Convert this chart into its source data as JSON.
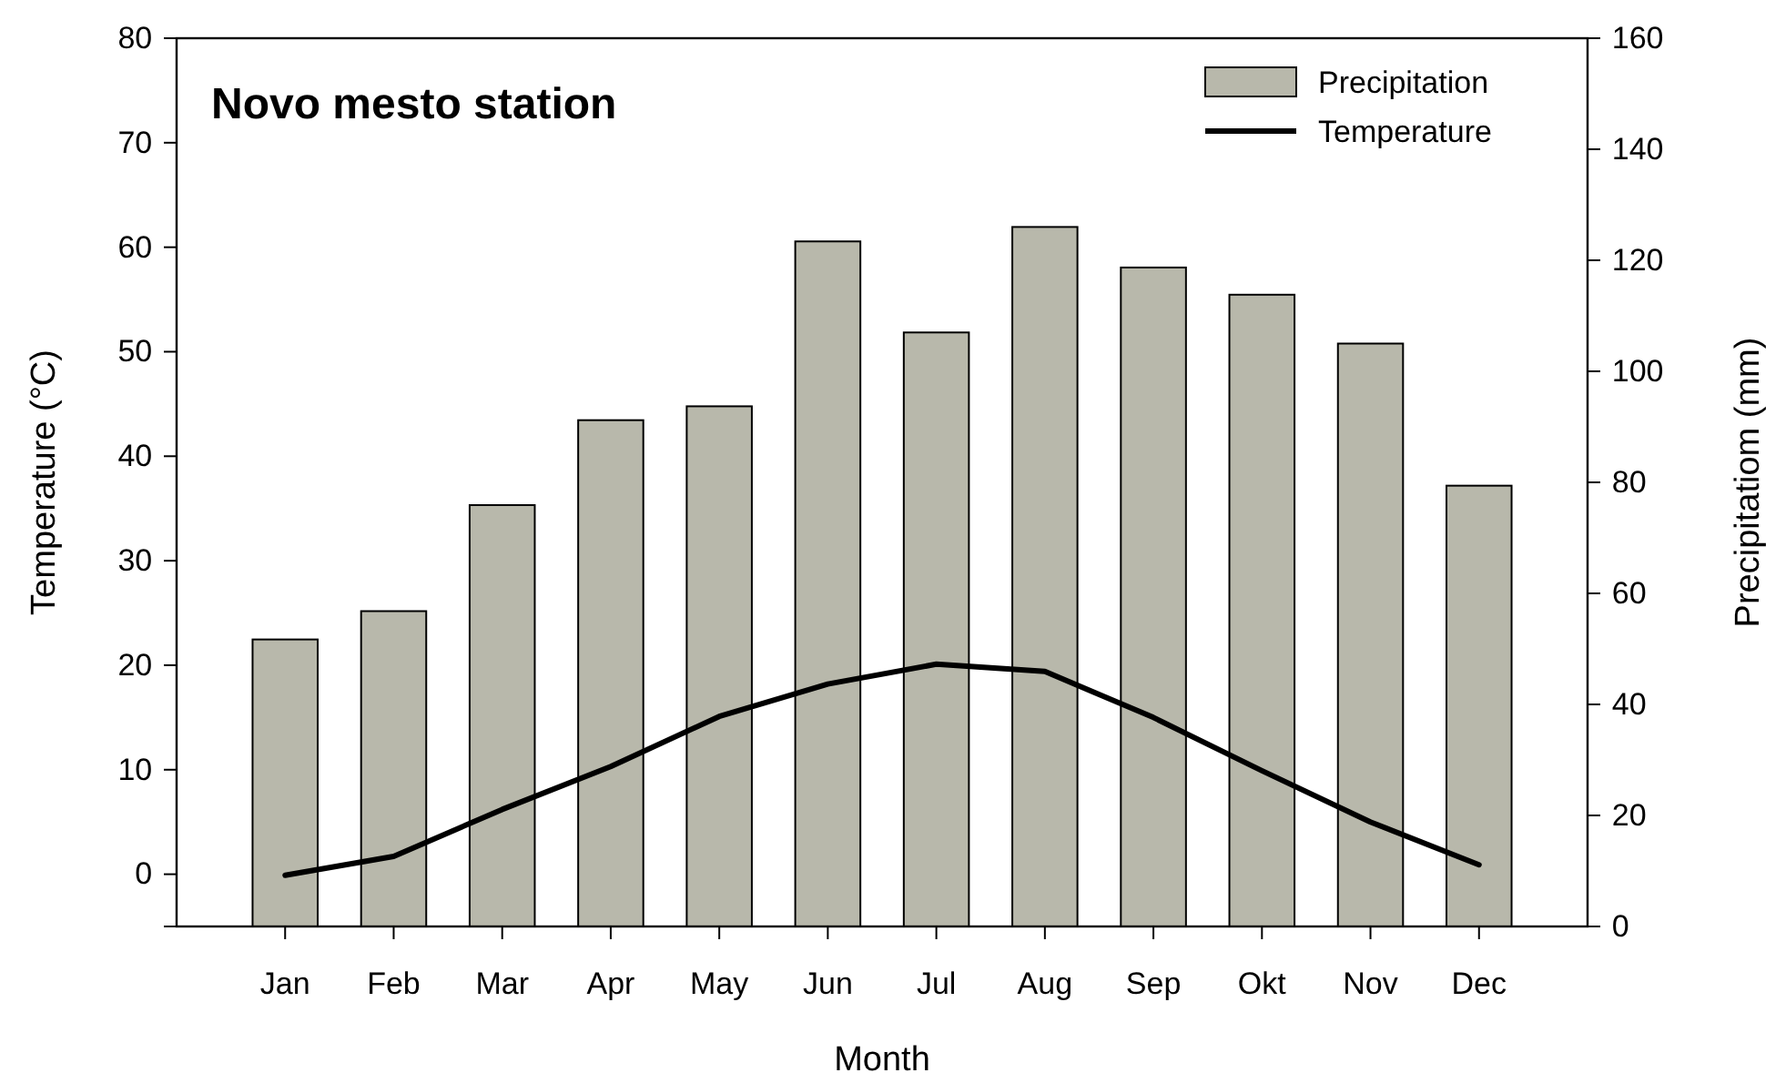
{
  "chart_data": {
    "type": "bar",
    "title": "Novo mesto station",
    "xlabel": "Month",
    "ylabel": "Temperature (°C)",
    "y2label": "Precipitatiom (mm)",
    "categories": [
      "Jan",
      "Feb",
      "Mar",
      "Apr",
      "May",
      "Jun",
      "Jul",
      "Aug",
      "Sep",
      "Okt",
      "Nov",
      "Dec"
    ],
    "series": [
      {
        "name": "Precipitation",
        "type": "bar",
        "axis": "y2",
        "color": "#b8b8ab",
        "values": [
          51.7,
          56.8,
          75.9,
          91.2,
          93.7,
          123.4,
          107,
          126,
          118.7,
          113.8,
          105,
          79.4
        ]
      },
      {
        "name": "Temperature",
        "type": "line",
        "color": "#000000",
        "values": [
          -0.1,
          1.7,
          6.2,
          10.3,
          15.1,
          18.2,
          20.1,
          19.4,
          15.0,
          9.9,
          5.0,
          0.9
        ]
      }
    ],
    "ylim": [
      -5,
      80
    ],
    "yticks": [
      0,
      10,
      20,
      30,
      40,
      50,
      60,
      70,
      80
    ],
    "y2lim": [
      0,
      160
    ],
    "y2ticks": [
      0,
      20,
      40,
      60,
      80,
      100,
      120,
      140,
      160
    ],
    "legend": "top right",
    "grid": false,
    "marker": "none",
    "line_style": "solid"
  }
}
